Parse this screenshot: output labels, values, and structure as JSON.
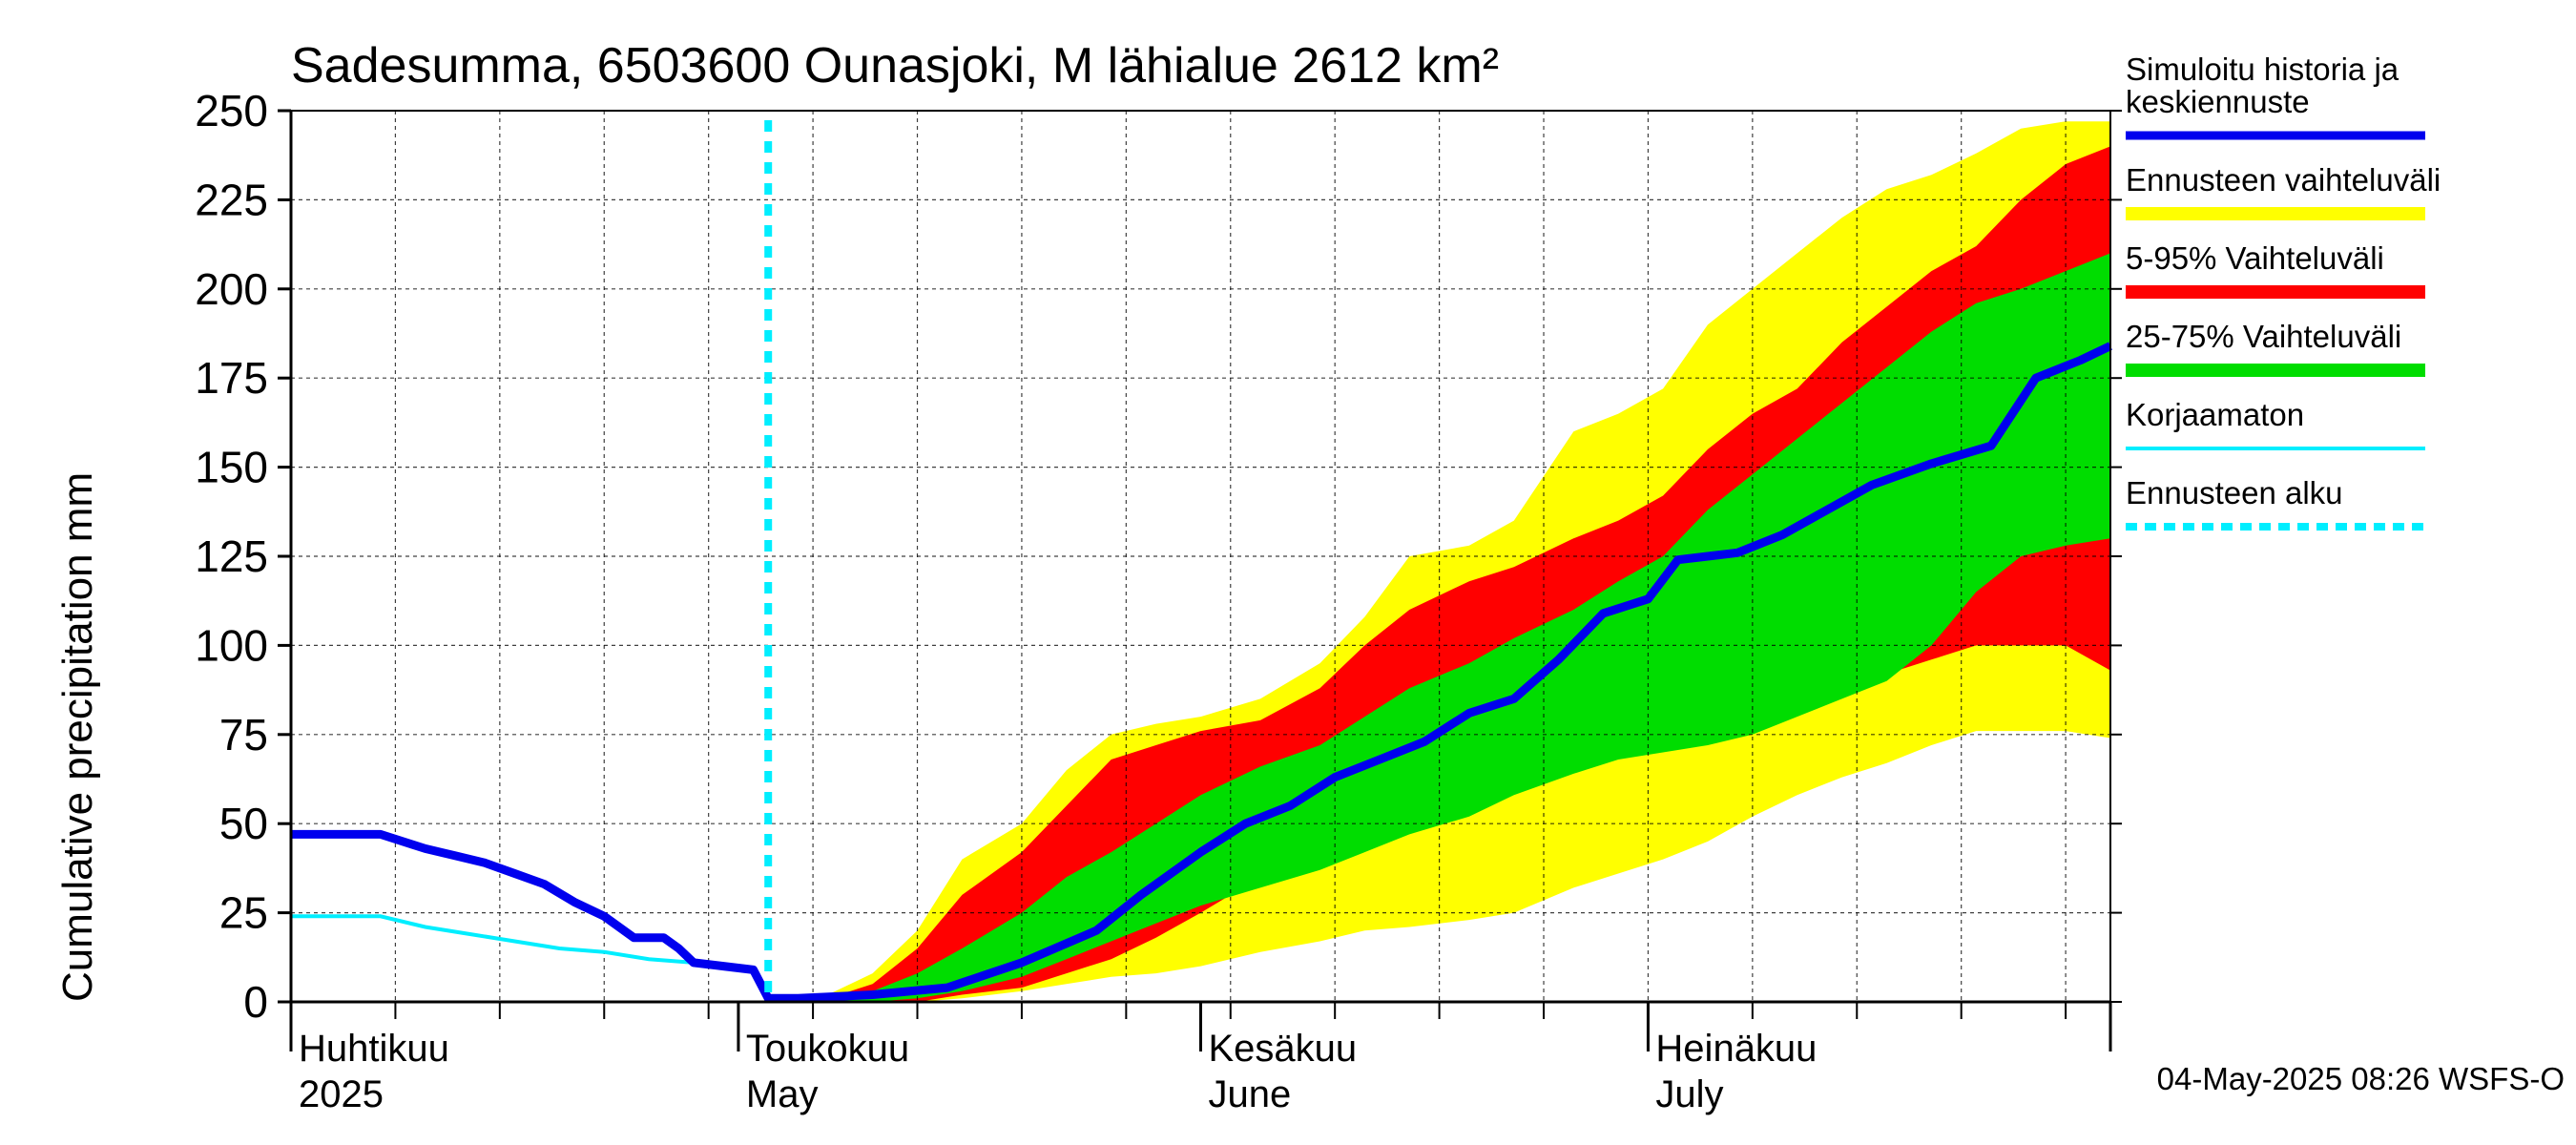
{
  "chart_data": {
    "type": "area",
    "title": "Sadesumma, 6503600 Ounasjoki, M lähialue 2612 km²",
    "ylabel": "Cumulative precipitation   mm",
    "xlabel": "",
    "ylim": [
      0,
      250
    ],
    "yticks": [
      0,
      25,
      50,
      75,
      100,
      125,
      150,
      175,
      200,
      225,
      250
    ],
    "xlim": [
      "2025-04-01",
      "2025-08-01"
    ],
    "grid": true,
    "legend_position": "right",
    "month_labels": [
      {
        "date": "2025-04-01",
        "line1": "Huhtikuu",
        "line2": "2025"
      },
      {
        "date": "2025-05-01",
        "line1": "Toukokuu",
        "line2": "May"
      },
      {
        "date": "2025-06-01",
        "line1": "Kesäkuu",
        "line2": "June"
      },
      {
        "date": "2025-07-01",
        "line1": "Heinäkuu",
        "line2": "July"
      }
    ],
    "forecast_start": "2025-05-03",
    "colors": {
      "history": "#0000ee",
      "range_full": "#ffff00",
      "range_5_95": "#ff0000",
      "range_25_75": "#00dd00",
      "uncorrected": "#00eeff",
      "forecast_start": "#00eeff"
    },
    "legend": [
      {
        "key": "history",
        "label_lines": [
          "Simuloitu historia ja",
          "keskiennuste"
        ],
        "style": "line"
      },
      {
        "key": "range_full",
        "label_lines": [
          "Ennusteen vaihteluväli"
        ],
        "style": "band"
      },
      {
        "key": "range_5_95",
        "label_lines": [
          "5-95% Vaihteluväli"
        ],
        "style": "band"
      },
      {
        "key": "range_25_75",
        "label_lines": [
          "25-75% Vaihteluväli"
        ],
        "style": "band"
      },
      {
        "key": "uncorrected",
        "label_lines": [
          "Korjaamaton"
        ],
        "style": "thin"
      },
      {
        "key": "forecast_start",
        "label_lines": [
          "Ennusteen alku"
        ],
        "style": "dotted"
      }
    ],
    "series": [
      {
        "key": "history",
        "name": "Simuloitu historia ja keskiennuste",
        "x": [
          "2025-04-01",
          "2025-04-07",
          "2025-04-10",
          "2025-04-12",
          "2025-04-14",
          "2025-04-16",
          "2025-04-18",
          "2025-04-20",
          "2025-04-22",
          "2025-04-24",
          "2025-04-26",
          "2025-04-27",
          "2025-04-28",
          "2025-04-30",
          "2025-05-02",
          "2025-05-03",
          "2025-05-05",
          "2025-05-10",
          "2025-05-15",
          "2025-05-20",
          "2025-05-25",
          "2025-05-28",
          "2025-06-01",
          "2025-06-04",
          "2025-06-07",
          "2025-06-10",
          "2025-06-13",
          "2025-06-16",
          "2025-06-19",
          "2025-06-22",
          "2025-06-25",
          "2025-06-28",
          "2025-07-01",
          "2025-07-03",
          "2025-07-05",
          "2025-07-07",
          "2025-07-10",
          "2025-07-13",
          "2025-07-16",
          "2025-07-20",
          "2025-07-24",
          "2025-07-27",
          "2025-07-30",
          "2025-08-01"
        ],
        "y": [
          47,
          47,
          43,
          41,
          39,
          36,
          33,
          28,
          24,
          18,
          18,
          15,
          11,
          10,
          9,
          1,
          1,
          2,
          4,
          11,
          20,
          30,
          42,
          50,
          55,
          63,
          68,
          73,
          81,
          85,
          96,
          109,
          113,
          124,
          125,
          126,
          131,
          138,
          145,
          151,
          156,
          175,
          180,
          184
        ]
      },
      {
        "key": "uncorrected",
        "name": "Korjaamaton",
        "x": [
          "2025-04-01",
          "2025-04-07",
          "2025-04-10",
          "2025-04-13",
          "2025-04-16",
          "2025-04-19",
          "2025-04-22",
          "2025-04-25",
          "2025-04-28",
          "2025-04-30",
          "2025-05-02",
          "2025-05-03"
        ],
        "y": [
          24,
          24,
          21,
          19,
          17,
          15,
          14,
          12,
          11,
          10,
          9,
          1
        ]
      },
      {
        "key": "range_full",
        "name": "Ennusteen vaihteluväli",
        "x": [
          "2025-05-03",
          "2025-05-07",
          "2025-05-10",
          "2025-05-13",
          "2025-05-16",
          "2025-05-20",
          "2025-05-23",
          "2025-05-26",
          "2025-05-29",
          "2025-06-01",
          "2025-06-05",
          "2025-06-09",
          "2025-06-12",
          "2025-06-15",
          "2025-06-19",
          "2025-06-22",
          "2025-06-26",
          "2025-06-29",
          "2025-07-02",
          "2025-07-05",
          "2025-07-08",
          "2025-07-11",
          "2025-07-14",
          "2025-07-17",
          "2025-07-20",
          "2025-07-23",
          "2025-07-26",
          "2025-07-29",
          "2025-08-01"
        ],
        "upper": [
          0,
          2,
          8,
          20,
          40,
          50,
          65,
          75,
          78,
          80,
          85,
          95,
          108,
          125,
          128,
          135,
          160,
          165,
          172,
          190,
          200,
          210,
          220,
          228,
          232,
          238,
          245,
          247,
          247
        ],
        "lower": [
          0,
          0,
          0,
          0,
          1,
          3,
          5,
          7,
          8,
          10,
          14,
          17,
          20,
          21,
          23,
          25,
          32,
          36,
          40,
          45,
          52,
          58,
          63,
          67,
          72,
          76,
          76,
          76,
          74
        ]
      },
      {
        "key": "range_5_95",
        "name": "5-95% Vaihteluväli",
        "x": [
          "2025-05-03",
          "2025-05-07",
          "2025-05-10",
          "2025-05-13",
          "2025-05-16",
          "2025-05-20",
          "2025-05-23",
          "2025-05-26",
          "2025-05-29",
          "2025-06-01",
          "2025-06-05",
          "2025-06-09",
          "2025-06-12",
          "2025-06-15",
          "2025-06-19",
          "2025-06-22",
          "2025-06-26",
          "2025-06-29",
          "2025-07-02",
          "2025-07-05",
          "2025-07-08",
          "2025-07-11",
          "2025-07-14",
          "2025-07-17",
          "2025-07-20",
          "2025-07-23",
          "2025-07-26",
          "2025-07-29",
          "2025-08-01"
        ],
        "upper": [
          0,
          1,
          5,
          15,
          30,
          42,
          55,
          68,
          72,
          76,
          79,
          88,
          100,
          110,
          118,
          122,
          130,
          135,
          142,
          155,
          165,
          172,
          185,
          195,
          205,
          212,
          225,
          235,
          240
        ],
        "lower": [
          0,
          0,
          0,
          0,
          2,
          4,
          8,
          12,
          18,
          25,
          35,
          42,
          47,
          52,
          55,
          60,
          70,
          73,
          73,
          75,
          80,
          85,
          90,
          92,
          96,
          100,
          100,
          100,
          93
        ]
      },
      {
        "key": "range_25_75",
        "name": "25-75% Vaihteluväli",
        "x": [
          "2025-05-03",
          "2025-05-07",
          "2025-05-10",
          "2025-05-13",
          "2025-05-16",
          "2025-05-20",
          "2025-05-23",
          "2025-05-26",
          "2025-05-29",
          "2025-06-01",
          "2025-06-05",
          "2025-06-09",
          "2025-06-12",
          "2025-06-15",
          "2025-06-19",
          "2025-06-22",
          "2025-06-26",
          "2025-06-29",
          "2025-07-02",
          "2025-07-05",
          "2025-07-08",
          "2025-07-11",
          "2025-07-14",
          "2025-07-17",
          "2025-07-20",
          "2025-07-23",
          "2025-07-26",
          "2025-07-29",
          "2025-08-01"
        ],
        "upper": [
          0,
          1,
          3,
          8,
          15,
          25,
          35,
          42,
          50,
          58,
          66,
          72,
          80,
          88,
          95,
          102,
          110,
          118,
          125,
          138,
          148,
          158,
          168,
          178,
          188,
          196,
          200,
          205,
          210
        ],
        "lower": [
          0,
          0,
          0,
          1,
          3,
          7,
          12,
          17,
          22,
          27,
          32,
          37,
          42,
          47,
          52,
          58,
          64,
          68,
          70,
          72,
          75,
          80,
          85,
          90,
          100,
          115,
          125,
          128,
          130
        ]
      }
    ]
  },
  "footer": {
    "timestamp": "04-May-2025 08:26 WSFS-O"
  }
}
